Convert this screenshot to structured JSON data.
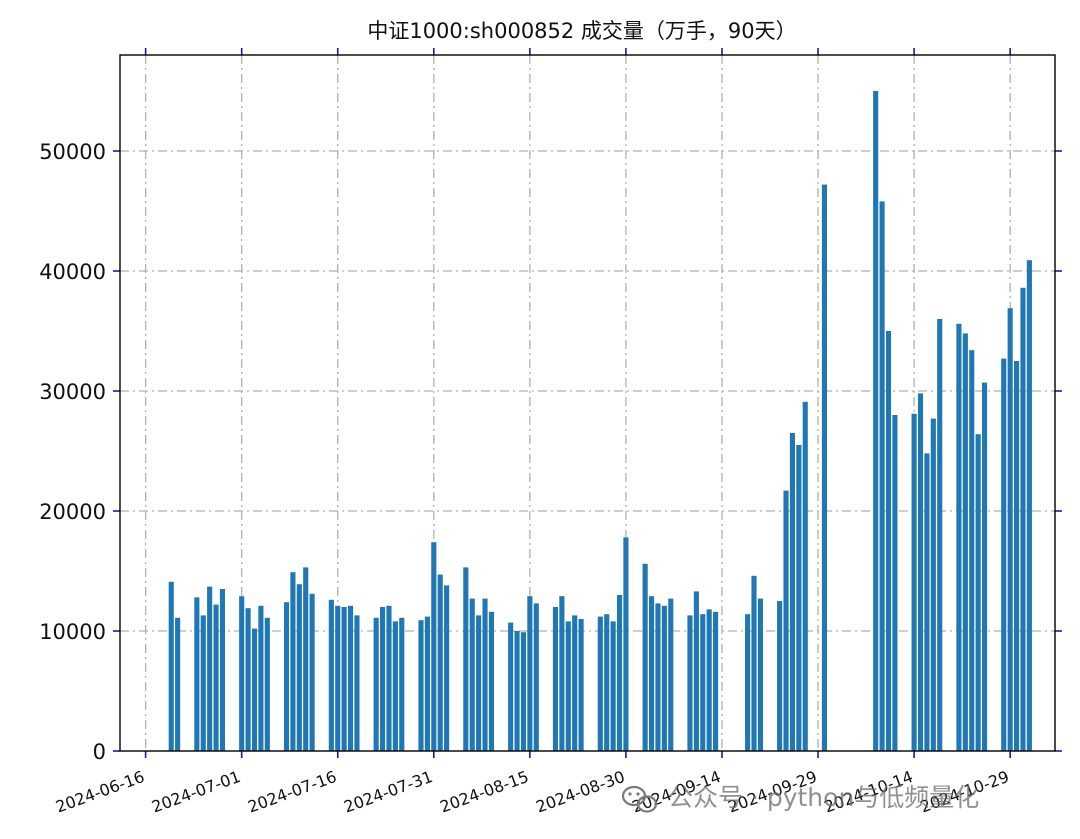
{
  "chart_data": {
    "type": "bar",
    "title": "中证1000:sh000852 成交量（万手，90天）",
    "xlabel": "",
    "ylabel": "",
    "ylim": [
      0,
      58000
    ],
    "yticks": [
      0,
      10000,
      20000,
      30000,
      40000,
      50000
    ],
    "ytick_labels": [
      "0",
      "10000",
      "20000",
      "30000",
      "40000",
      "50000"
    ],
    "x_range": [
      "2024-06-12",
      "2024-11-05"
    ],
    "xtick_dates": [
      "2024-06-16",
      "2024-07-01",
      "2024-07-16",
      "2024-07-31",
      "2024-08-15",
      "2024-08-30",
      "2024-09-14",
      "2024-09-29",
      "2024-10-14",
      "2024-10-29"
    ],
    "grid": true,
    "bar_color": "#1f77b4",
    "axis_tick_color": "#1a1aa0",
    "dates": [
      "2024-06-20",
      "2024-06-21",
      "2024-06-24",
      "2024-06-25",
      "2024-06-26",
      "2024-06-27",
      "2024-06-28",
      "2024-07-01",
      "2024-07-02",
      "2024-07-03",
      "2024-07-04",
      "2024-07-05",
      "2024-07-08",
      "2024-07-09",
      "2024-07-10",
      "2024-07-11",
      "2024-07-12",
      "2024-07-15",
      "2024-07-16",
      "2024-07-17",
      "2024-07-18",
      "2024-07-19",
      "2024-07-22",
      "2024-07-23",
      "2024-07-24",
      "2024-07-25",
      "2024-07-26",
      "2024-07-29",
      "2024-07-30",
      "2024-07-31",
      "2024-08-01",
      "2024-08-02",
      "2024-08-05",
      "2024-08-06",
      "2024-08-07",
      "2024-08-08",
      "2024-08-09",
      "2024-08-12",
      "2024-08-13",
      "2024-08-14",
      "2024-08-15",
      "2024-08-16",
      "2024-08-19",
      "2024-08-20",
      "2024-08-21",
      "2024-08-22",
      "2024-08-23",
      "2024-08-26",
      "2024-08-27",
      "2024-08-28",
      "2024-08-29",
      "2024-08-30",
      "2024-09-02",
      "2024-09-03",
      "2024-09-04",
      "2024-09-05",
      "2024-09-06",
      "2024-09-09",
      "2024-09-10",
      "2024-09-11",
      "2024-09-12",
      "2024-09-13",
      "2024-09-18",
      "2024-09-19",
      "2024-09-20",
      "2024-09-23",
      "2024-09-24",
      "2024-09-25",
      "2024-09-26",
      "2024-09-27",
      "2024-09-30",
      "2024-10-08",
      "2024-10-09",
      "2024-10-10",
      "2024-10-11",
      "2024-10-14",
      "2024-10-15",
      "2024-10-16",
      "2024-10-17",
      "2024-10-18",
      "2024-10-21",
      "2024-10-22",
      "2024-10-23",
      "2024-10-24",
      "2024-10-25",
      "2024-10-28",
      "2024-10-29",
      "2024-10-30",
      "2024-10-31",
      "2024-11-01"
    ],
    "values": [
      14100,
      11100,
      12800,
      11300,
      13700,
      12200,
      13500,
      12900,
      11900,
      10200,
      12100,
      11100,
      12400,
      14900,
      13900,
      15300,
      13100,
      12600,
      12100,
      12000,
      12100,
      11300,
      11100,
      12000,
      12100,
      10800,
      11100,
      10900,
      11200,
      17400,
      14700,
      13800,
      15300,
      12700,
      11300,
      12700,
      11600,
      10700,
      10000,
      9900,
      12900,
      12300,
      12000,
      12900,
      10800,
      11300,
      11000,
      11200,
      11400,
      10800,
      13000,
      17800,
      15600,
      12900,
      12300,
      12100,
      12700,
      11300,
      13300,
      11400,
      11800,
      11600,
      11400,
      14600,
      12700,
      12500,
      21700,
      26500,
      25500,
      29100,
      47200,
      55000,
      45800,
      35000,
      28000,
      28100,
      29800,
      24800,
      27700,
      36000,
      35600,
      34800,
      33400,
      26400,
      30700,
      32700,
      36900,
      32500,
      38600,
      40900
    ]
  },
  "watermark": {
    "text": "公众号 · python与低频量化",
    "icon": "wechat-icon"
  }
}
